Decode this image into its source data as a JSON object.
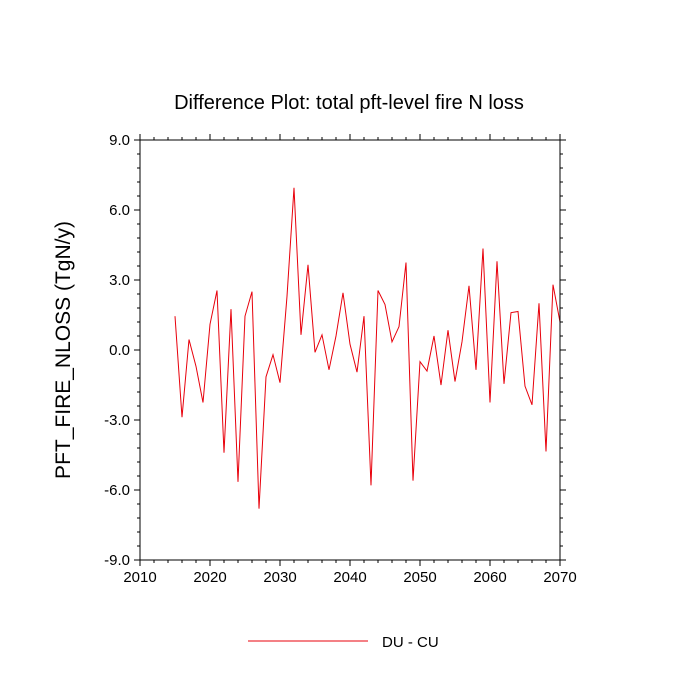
{
  "chart_data": {
    "type": "line",
    "title": "Difference Plot: total pft-level fire N loss",
    "xlabel": "",
    "ylabel": "PFT_FIRE_NLOSS  (TgN/y)",
    "xlim": [
      2010,
      2070
    ],
    "ylim": [
      -9.0,
      9.0
    ],
    "x_ticks": [
      2010,
      2020,
      2030,
      2040,
      2050,
      2060,
      2070
    ],
    "x_tick_labels": [
      "2010",
      "2020",
      "2030",
      "2040",
      "2050",
      "2060",
      "2070"
    ],
    "y_ticks": [
      -9.0,
      -6.0,
      -3.0,
      0.0,
      3.0,
      6.0,
      9.0
    ],
    "y_tick_labels": [
      "-9.0",
      "-6.0",
      "-3.0",
      "0.0",
      "3.0",
      "6.0",
      "9.0"
    ],
    "grid": false,
    "legend_position": "bottom-center",
    "series": [
      {
        "name": "DU - CU",
        "color": "#e8000b",
        "x": [
          2015,
          2016,
          2017,
          2018,
          2019,
          2020,
          2021,
          2022,
          2023,
          2024,
          2025,
          2026,
          2027,
          2028,
          2029,
          2030,
          2031,
          2032,
          2033,
          2034,
          2035,
          2036,
          2037,
          2038,
          2039,
          2040,
          2041,
          2042,
          2043,
          2044,
          2045,
          2046,
          2047,
          2048,
          2049,
          2050,
          2051,
          2052,
          2053,
          2054,
          2055,
          2056,
          2057,
          2058,
          2059,
          2060,
          2061,
          2062,
          2063,
          2064,
          2065,
          2066,
          2067,
          2068,
          2069,
          2070
        ],
        "values": [
          1.45,
          -2.88,
          0.45,
          -0.7,
          -2.25,
          1.1,
          2.55,
          -4.4,
          1.75,
          -5.65,
          1.45,
          2.5,
          -6.8,
          -1.15,
          -0.2,
          -1.4,
          2.3,
          6.95,
          0.65,
          3.65,
          -0.1,
          0.65,
          -0.85,
          0.6,
          2.45,
          0.25,
          -0.95,
          1.45,
          -5.8,
          2.55,
          1.95,
          0.35,
          1.0,
          3.75,
          -5.6,
          -0.5,
          -0.9,
          0.6,
          -1.5,
          0.85,
          -1.35,
          0.35,
          2.75,
          -0.85,
          4.35,
          -2.25,
          3.8,
          -1.45,
          1.6,
          1.65,
          -1.55,
          -2.35,
          2.0,
          -4.35,
          2.8,
          1.2
        ]
      }
    ]
  }
}
